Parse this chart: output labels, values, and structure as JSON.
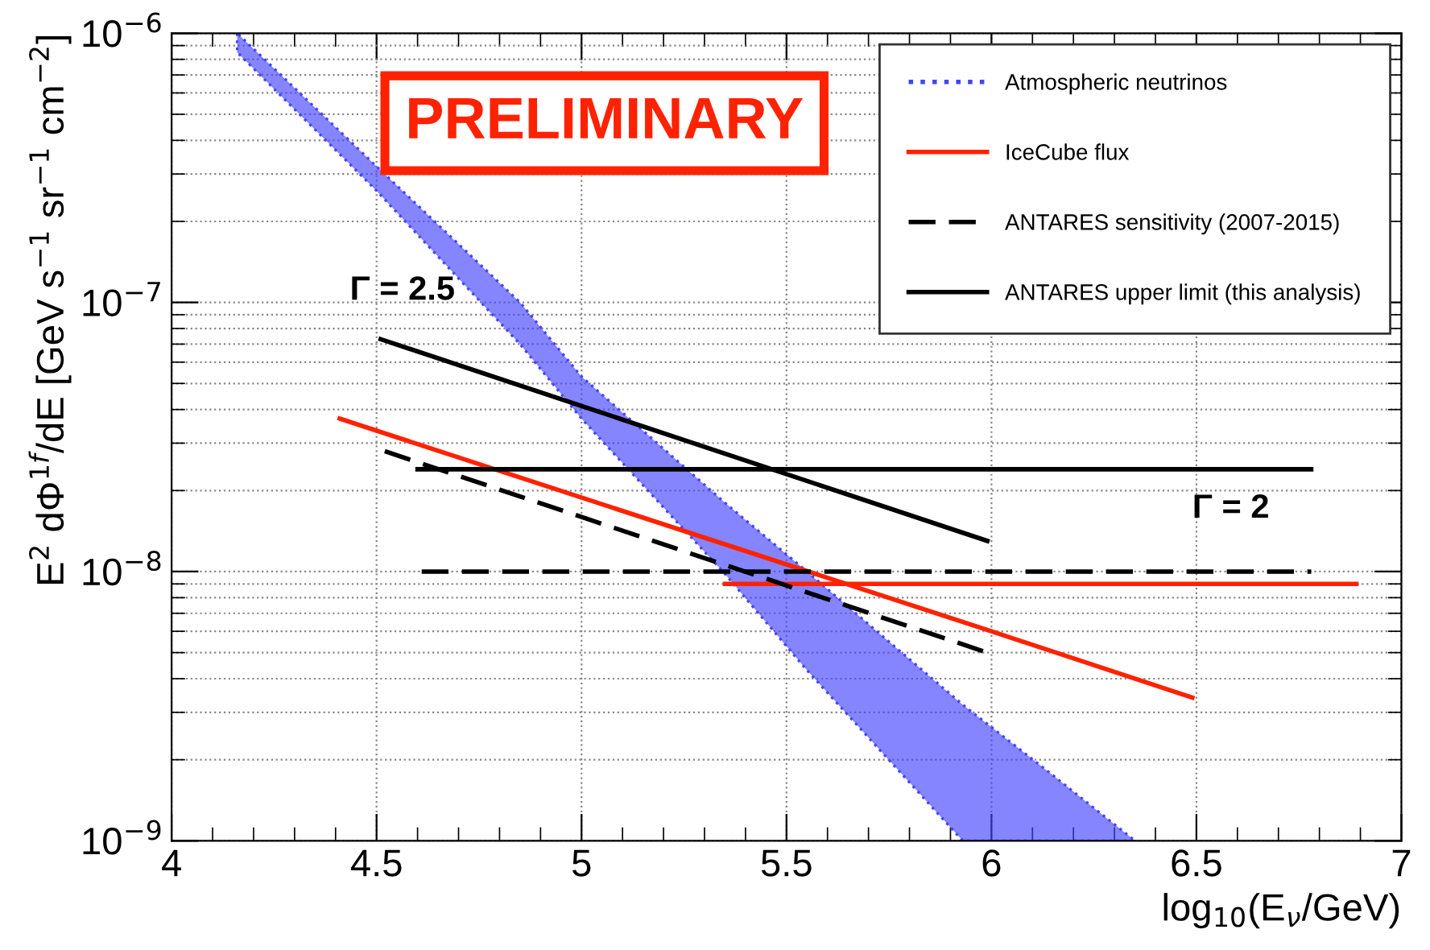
{
  "chart_data": {
    "type": "line",
    "xlabel": "log$_{10}$(E$_{ν}$/GeV)",
    "ylabel": "E$^{2}$ dΦ$^{1f}$/dE [GeV s$^{−1}$ sr$^{−1}$ cm$^{−2}$]",
    "log": "y",
    "grid": true,
    "legend": "top right",
    "xlim": [
      4,
      7
    ],
    "xticks": [
      4,
      4.5,
      5,
      5.5,
      6,
      6.5,
      7
    ],
    "ylim": [
      1e-09,
      1e-06
    ],
    "yticks": [
      {
        "value": 1e-09,
        "label": "10$^{−9}$"
      },
      {
        "value": 1e-08,
        "label": "10$^{−8}$"
      },
      {
        "value": 1e-07,
        "label": "10$^{−7}$"
      },
      {
        "value": 1e-06,
        "label": "10$^{−6}$"
      }
    ],
    "series": [
      {
        "name": "Atmospheric neutrinos",
        "type": "area",
        "color": "#4444ff",
        "line_style": "dotted",
        "x": [
          4.16,
          4.5,
          4.85,
          5.0,
          5.35,
          5.55,
          5.93,
          6.15,
          6.35
        ],
        "values": [
          null,
          null,
          null,
          null,
          null,
          null,
          null,
          null,
          null
        ],
        "lower": [
          8.5e-07,
          2.6e-07,
          7e-08,
          3.7e-08,
          9.8e-09,
          4.3e-09,
          1e-09,
          1e-09,
          1e-09
        ],
        "upper": [
          1e-06,
          3.2e-07,
          1e-07,
          5.3e-08,
          1.8e-08,
          1e-08,
          3.2e-09,
          1.75e-09,
          1e-09
        ]
      },
      {
        "name": "IceCube flux",
        "color": "#ff2200",
        "line_style": "solid",
        "x": [
          4.41,
          6.0,
          6.49
        ],
        "values": [
          3.7e-08,
          6e-09,
          3.4e-09
        ]
      },
      {
        "color": "#ff2200",
        "line_style": "solid",
        "x": [
          5.35,
          6.89
        ],
        "values": [
          9e-09,
          9e-09
        ]
      },
      {
        "name": "ANTARES sensitivity (2007-2015)",
        "color": "#000000",
        "line_style": "dashed",
        "x": [
          4.52,
          5.99
        ],
        "values": [
          2.8e-08,
          5e-09
        ]
      },
      {
        "color": "#000000",
        "line_style": "dashed",
        "x": [
          4.61,
          6.78
        ],
        "values": [
          1e-08,
          1e-08
        ]
      },
      {
        "name": "ANTARES upper limit (this analysis)",
        "color": "#000000",
        "line_style": "solid",
        "x": [
          4.51,
          5.99
        ],
        "values": [
          7.3e-08,
          1.3e-08
        ]
      },
      {
        "color": "#000000",
        "line_style": "solid",
        "x": [
          4.6,
          6.78
        ],
        "values": [
          2.4e-08,
          2.4e-08
        ]
      }
    ],
    "annotations": [
      "PRELIMINARY",
      "Γ = 2.5",
      "Γ = 2"
    ]
  }
}
